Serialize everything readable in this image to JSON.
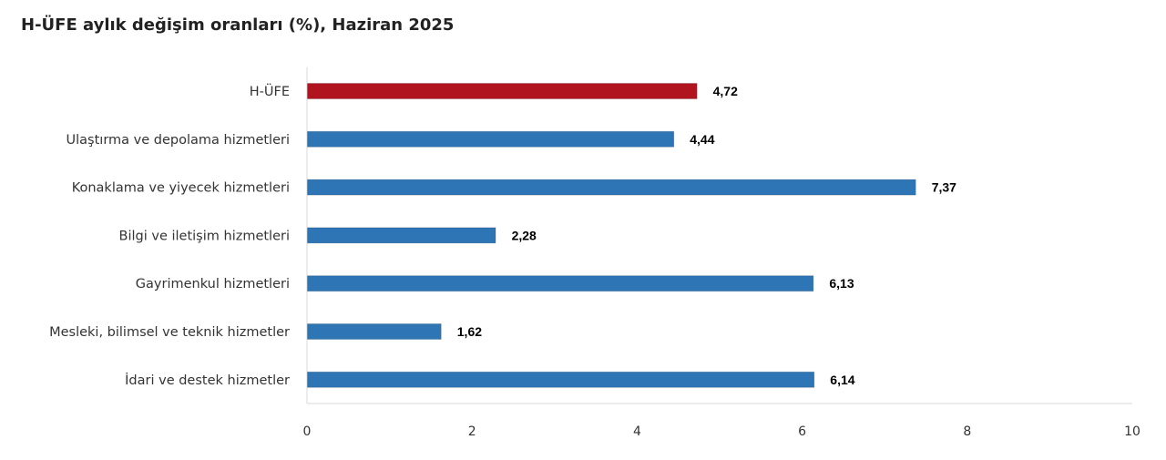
{
  "chart_data": {
    "type": "bar",
    "orientation": "horizontal",
    "title": "H-ÜFE aylık değişim oranları (%), Haziran 2025",
    "categories": [
      "H-ÜFE",
      "Ulaştırma ve depolama hizmetleri",
      "Konaklama ve yiyecek hizmetleri",
      "Bilgi ve iletişim hizmetleri",
      "Gayrimenkul hizmetleri",
      "Mesleki, bilimsel ve teknik hizmetler",
      "İdari ve destek hizmetler"
    ],
    "values": [
      4.72,
      4.44,
      7.37,
      2.28,
      6.13,
      1.62,
      6.14
    ],
    "value_labels": [
      "4,72",
      "4,44",
      "7,37",
      "2,28",
      "6,13",
      "1,62",
      "6,14"
    ],
    "highlight_index": 0,
    "colors": {
      "highlight": "#B0141E",
      "bar": "#2E75B6",
      "axis": "#D9D9D9"
    },
    "xlim": [
      0,
      10
    ],
    "xticks": [
      0,
      2,
      4,
      6,
      8,
      10
    ],
    "grid": false,
    "legend": "none"
  }
}
